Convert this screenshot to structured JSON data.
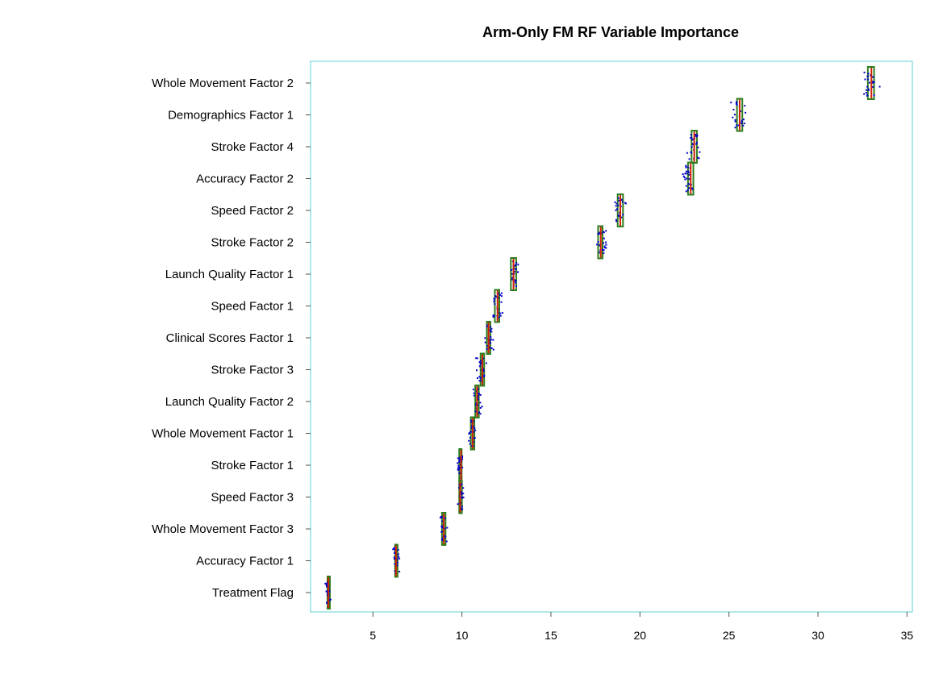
{
  "chart_data": {
    "type": "boxplot",
    "title": "Arm-Only FM RF Variable Importance",
    "xlabel": "",
    "ylabel": "",
    "xlim": [
      1.5,
      35.3
    ],
    "x_ticks": [
      5,
      10,
      15,
      20,
      25,
      30,
      35
    ],
    "grid": false,
    "colors": {
      "frame": "#5fd3d3",
      "box": "#2e7d1e",
      "median": "#cc2200",
      "points": "#0000cc",
      "axis": "#555555"
    },
    "categories": [
      "Whole Movement Factor 2",
      "Demographics Factor 1",
      "Stroke Factor 4",
      "Accuracy Factor 2",
      "Speed Factor 2",
      "Stroke Factor 2",
      "Launch Quality Factor 1",
      "Speed Factor 1",
      "Clinical Scores Factor 1",
      "Stroke Factor 3",
      "Launch Quality Factor 2",
      "Whole Movement Factor 1",
      "Stroke Factor 1",
      "Speed Factor 3",
      "Whole Movement Factor 3",
      "Accuracy Factor 1",
      "Treatment Flag"
    ],
    "series": [
      {
        "category": "Whole Movement Factor 2",
        "q1": 32.8,
        "median": 33.0,
        "q3": 33.15,
        "min": 32.2,
        "max": 33.7
      },
      {
        "category": "Demographics Factor 1",
        "q1": 25.45,
        "median": 25.6,
        "q3": 25.75,
        "min": 25.0,
        "max": 26.2
      },
      {
        "category": "Stroke Factor 4",
        "q1": 22.9,
        "median": 23.05,
        "q3": 23.2,
        "min": 22.5,
        "max": 23.6
      },
      {
        "category": "Accuracy Factor 2",
        "q1": 22.7,
        "median": 22.85,
        "q3": 23.0,
        "min": 22.3,
        "max": 23.2
      },
      {
        "category": "Speed Factor 2",
        "q1": 18.75,
        "median": 18.9,
        "q3": 19.05,
        "min": 18.4,
        "max": 19.3
      },
      {
        "category": "Stroke Factor 2",
        "q1": 17.65,
        "median": 17.8,
        "q3": 17.9,
        "min": 17.5,
        "max": 18.3
      },
      {
        "category": "Launch Quality Factor 1",
        "q1": 12.75,
        "median": 12.9,
        "q3": 13.05,
        "min": 12.5,
        "max": 13.4
      },
      {
        "category": "Speed Factor 1",
        "q1": 11.85,
        "median": 12.0,
        "q3": 12.1,
        "min": 11.6,
        "max": 12.4
      },
      {
        "category": "Clinical Scores Factor 1",
        "q1": 11.4,
        "median": 11.5,
        "q3": 11.6,
        "min": 11.2,
        "max": 11.9
      },
      {
        "category": "Stroke Factor 3",
        "q1": 11.05,
        "median": 11.15,
        "q3": 11.25,
        "min": 10.7,
        "max": 11.5
      },
      {
        "category": "Launch Quality Factor 2",
        "q1": 10.75,
        "median": 10.85,
        "q3": 10.95,
        "min": 10.6,
        "max": 11.2
      },
      {
        "category": "Whole Movement Factor 1",
        "q1": 10.5,
        "median": 10.6,
        "q3": 10.7,
        "min": 10.3,
        "max": 10.9
      },
      {
        "category": "Stroke Factor 1",
        "q1": 9.85,
        "median": 9.95,
        "q3": 9.98,
        "min": 9.7,
        "max": 10.1
      },
      {
        "category": "Speed Factor 3",
        "q1": 9.85,
        "median": 9.9,
        "q3": 10.0,
        "min": 9.7,
        "max": 10.2
      },
      {
        "category": "Whole Movement Factor 3",
        "q1": 8.88,
        "median": 8.98,
        "q3": 9.08,
        "min": 8.6,
        "max": 9.3
      },
      {
        "category": "Accuracy Factor 1",
        "q1": 6.25,
        "median": 6.3,
        "q3": 6.35,
        "min": 6.0,
        "max": 6.6
      },
      {
        "category": "Treatment Flag",
        "q1": 2.45,
        "median": 2.5,
        "q3": 2.55,
        "min": 2.3,
        "max": 2.7
      }
    ]
  }
}
